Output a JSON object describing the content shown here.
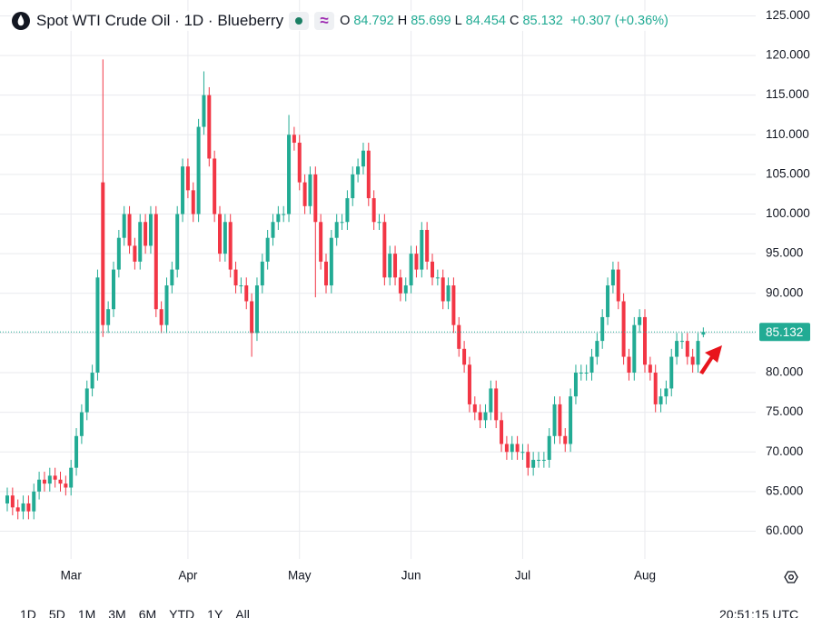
{
  "header": {
    "title": "Spot WTI Crude Oil · 1D · Blueberry",
    "ohlc_labels": [
      "O",
      "H",
      "L",
      "C"
    ],
    "change": "+0.307 (+0.36%)"
  },
  "toolbar": {
    "ranges": [
      "1D",
      "5D",
      "1M",
      "3M",
      "6M",
      "YTD",
      "1Y",
      "All"
    ],
    "time": "20:51:15 UTC"
  },
  "chart_data": {
    "type": "candlestick",
    "up_color": "#22ab94",
    "down_color": "#f23645",
    "grid": true,
    "categories": [
      null,
      null,
      null,
      null,
      null,
      null,
      null,
      null,
      null,
      null,
      null,
      null,
      "Mar",
      null,
      null,
      null,
      null,
      null,
      null,
      null,
      null,
      null,
      null,
      null,
      null,
      null,
      null,
      null,
      null,
      null,
      null,
      null,
      null,
      null,
      "Apr",
      null,
      null,
      null,
      null,
      null,
      null,
      null,
      null,
      null,
      null,
      null,
      null,
      null,
      null,
      null,
      null,
      null,
      null,
      null,
      null,
      "May",
      null,
      null,
      null,
      null,
      null,
      null,
      null,
      null,
      null,
      null,
      null,
      null,
      null,
      null,
      null,
      null,
      null,
      null,
      null,
      null,
      "Jun",
      null,
      null,
      null,
      null,
      null,
      null,
      null,
      null,
      null,
      null,
      null,
      null,
      null,
      null,
      null,
      null,
      null,
      null,
      null,
      null,
      "Jul",
      null,
      null,
      null,
      null,
      null,
      null,
      null,
      null,
      null,
      null,
      null,
      null,
      null,
      null,
      null,
      null,
      null,
      null,
      null,
      null,
      null,
      null,
      "Aug",
      null,
      null,
      null,
      null,
      null,
      null,
      null,
      null,
      null,
      null,
      null
    ],
    "open": [
      63.5,
      64.5,
      63,
      62.5,
      63.5,
      62.5,
      65,
      66.5,
      66,
      67,
      66.5,
      66,
      65.5,
      68,
      72,
      75,
      78,
      80,
      104,
      86,
      88,
      93,
      97,
      100,
      96,
      94,
      99,
      96,
      100,
      88,
      86,
      91,
      93,
      100,
      106,
      103,
      100,
      111,
      115,
      107,
      100,
      95,
      99,
      93,
      91,
      91,
      89,
      85,
      91,
      94,
      97,
      99,
      100,
      100,
      110,
      109,
      104,
      101,
      105,
      99,
      94,
      91,
      97,
      99,
      99,
      102,
      105,
      106,
      108,
      102,
      99,
      99,
      92,
      95,
      92,
      90,
      91,
      95,
      93,
      98,
      94,
      92,
      92,
      89,
      91,
      86,
      83,
      81,
      76,
      75,
      74,
      75,
      78,
      74,
      71,
      70,
      71,
      70,
      70,
      68,
      69,
      69,
      69,
      72,
      76,
      72,
      71,
      77,
      80,
      80,
      80,
      82,
      84,
      87,
      91,
      93,
      89,
      82,
      80,
      86,
      87,
      81,
      80,
      76,
      77,
      78,
      82,
      84,
      84,
      82,
      81,
      84.792
    ],
    "high": [
      65.5,
      65.5,
      64,
      64.5,
      64.5,
      66,
      67.5,
      67.5,
      68,
      68,
      67.5,
      67,
      69,
      73,
      76,
      79,
      81,
      93,
      119.5,
      89,
      94,
      98,
      101,
      101,
      97,
      100,
      100,
      101,
      101,
      89,
      92,
      94,
      101,
      107,
      107,
      104,
      112,
      118,
      116,
      108,
      101,
      100,
      100,
      94,
      92,
      92,
      90,
      92,
      95,
      98,
      100,
      101,
      101,
      112.5,
      111,
      110,
      105,
      106,
      106,
      100,
      95,
      98,
      100,
      100,
      103,
      106,
      107,
      109,
      109,
      103,
      100,
      100,
      96,
      96,
      93,
      92,
      96,
      96,
      99,
      99,
      95,
      93,
      93,
      92,
      92,
      87,
      84,
      82,
      77,
      76,
      76,
      79,
      79,
      75,
      72,
      72,
      72,
      71,
      71,
      70,
      70,
      70,
      73,
      77,
      77,
      73,
      78,
      81,
      81,
      81,
      83,
      85,
      88,
      92,
      94,
      94,
      90,
      83,
      87,
      88,
      88,
      82,
      81,
      78,
      79,
      83,
      85,
      85,
      85,
      83,
      85,
      85.699
    ],
    "low": [
      62.5,
      62,
      61.5,
      61.5,
      61.5,
      61.5,
      64,
      65,
      65,
      65.5,
      65,
      64.5,
      64.5,
      67,
      71,
      74,
      77,
      79,
      84.5,
      85,
      87,
      92,
      96,
      95,
      93,
      93,
      95,
      95,
      87,
      85,
      85,
      90,
      92,
      99,
      102,
      99,
      99,
      110,
      106,
      99,
      94,
      94,
      92,
      90,
      90,
      88,
      82,
      84,
      90,
      93,
      96,
      98,
      99,
      99,
      108,
      103,
      100,
      100,
      89.5,
      93,
      90,
      90,
      96,
      98,
      98,
      101,
      104,
      105,
      101,
      98,
      98,
      91,
      91,
      91,
      89,
      89,
      90,
      92,
      92,
      93,
      91,
      91,
      88,
      88,
      85,
      82,
      80,
      75,
      74,
      73,
      73,
      74,
      73,
      70,
      69,
      69,
      69,
      69,
      67,
      67,
      68,
      68,
      68,
      71,
      71,
      70,
      70,
      76,
      79,
      79,
      79,
      81,
      83,
      86,
      90,
      88,
      81,
      79,
      79,
      85,
      80,
      79,
      75,
      75,
      76,
      77,
      81,
      83,
      81,
      80,
      80,
      84.454
    ],
    "close": [
      64.5,
      63,
      62.5,
      63.5,
      62.5,
      65,
      66.5,
      66,
      67,
      66.5,
      66,
      65.5,
      68,
      72,
      75,
      78,
      80,
      92,
      86,
      88,
      93,
      97,
      100,
      96,
      94,
      99,
      96,
      100,
      88,
      86,
      91,
      93,
      100,
      106,
      103,
      100,
      111,
      115,
      107,
      100,
      95,
      99,
      93,
      91,
      91,
      89,
      85,
      91,
      94,
      97,
      99,
      100,
      100,
      110,
      109,
      104,
      101,
      105,
      99,
      94,
      91,
      97,
      99,
      99,
      102,
      105,
      106,
      108,
      102,
      99,
      99,
      92,
      95,
      92,
      90,
      91,
      95,
      93,
      98,
      94,
      92,
      92,
      89,
      91,
      86,
      83,
      81,
      76,
      75,
      74,
      75,
      78,
      74,
      71,
      70,
      71,
      70,
      70,
      68,
      69,
      69,
      69,
      72,
      76,
      72,
      71,
      77,
      80,
      80,
      80,
      82,
      84,
      87,
      91,
      93,
      89,
      82,
      80,
      86,
      87,
      81,
      80,
      76,
      77,
      78,
      82,
      84,
      84,
      82,
      81,
      84,
      85.132
    ],
    "ylim": [
      56.5,
      127
    ],
    "yticks": [
      {
        "value": 60,
        "label": "60.000"
      },
      {
        "value": 65,
        "label": "65.000"
      },
      {
        "value": 70,
        "label": "70.000"
      },
      {
        "value": 75,
        "label": "75.000"
      },
      {
        "value": 80,
        "label": "80.000"
      },
      {
        "value": 85,
        "label": "85.000"
      },
      {
        "value": 90,
        "label": "90.000"
      },
      {
        "value": 95,
        "label": "95.000"
      },
      {
        "value": 100,
        "label": "100.000"
      },
      {
        "value": 105,
        "label": "105.000"
      },
      {
        "value": 110,
        "label": "110.000"
      },
      {
        "value": 115,
        "label": "115.000"
      },
      {
        "value": 120,
        "label": "120.000"
      },
      {
        "value": 125,
        "label": "125.000"
      }
    ]
  }
}
